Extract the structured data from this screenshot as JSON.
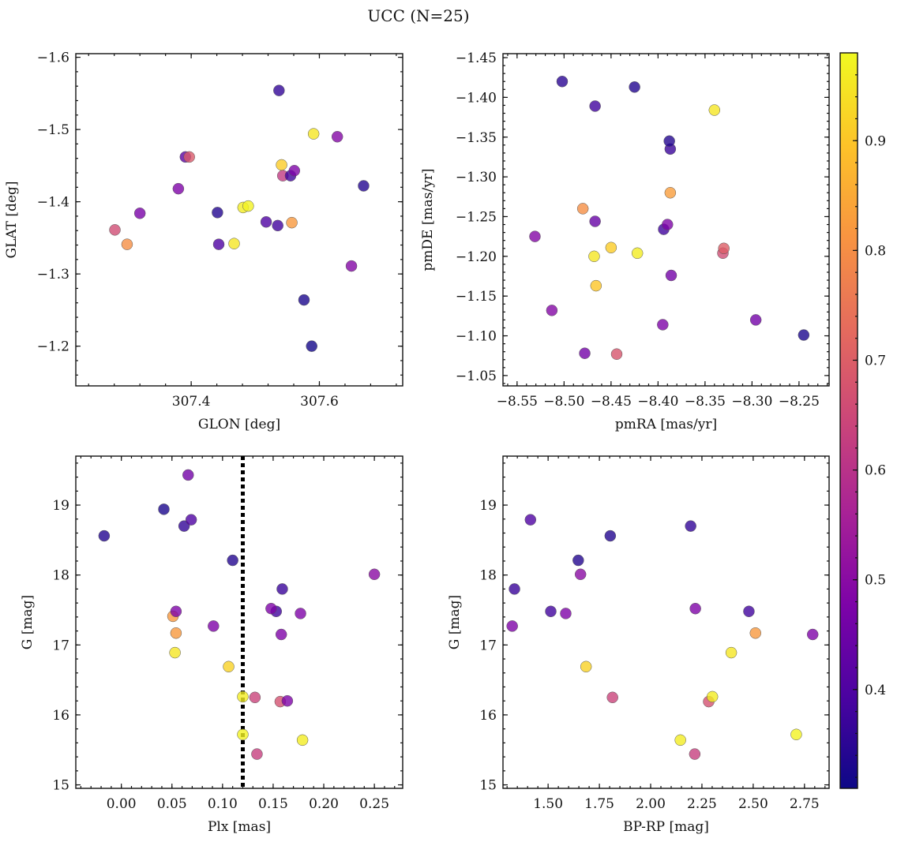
{
  "figure": {
    "title": "UCC (N=25)"
  },
  "colorbar": {
    "colormap": "plasma",
    "range": [
      0.31,
      0.98
    ],
    "ticks": [
      0.4,
      0.5,
      0.6,
      0.7,
      0.8,
      0.9
    ],
    "tick_labels": [
      "0.4",
      "0.5",
      "0.6",
      "0.7",
      "0.8",
      "0.9"
    ]
  },
  "chart_data": [
    {
      "type": "scatter",
      "xlabel": "GLON [deg]",
      "ylabel": "GLAT [deg]",
      "xlim": [
        307.22,
        307.73
      ],
      "ylim": [
        -1.605,
        -1.145
      ],
      "xticks": [
        307.4,
        307.6
      ],
      "xtick_labels": [
        "307.4",
        "307.6"
      ],
      "yticks": [
        -1.6,
        -1.5,
        -1.4,
        -1.3,
        -1.2
      ],
      "ytick_labels": [
        "−1.6",
        "−1.5",
        "−1.4",
        "−1.3",
        "−1.2"
      ],
      "points": [
        {
          "x": 307.588,
          "y": -1.2,
          "c": 0.32
        },
        {
          "x": 307.576,
          "y": -1.264,
          "c": 0.33
        },
        {
          "x": 307.65,
          "y": -1.311,
          "c": 0.49
        },
        {
          "x": 307.281,
          "y": -1.361,
          "c": 0.66
        },
        {
          "x": 307.3,
          "y": -1.341,
          "c": 0.8
        },
        {
          "x": 307.32,
          "y": -1.384,
          "c": 0.47
        },
        {
          "x": 307.443,
          "y": -1.341,
          "c": 0.4
        },
        {
          "x": 307.467,
          "y": -1.342,
          "c": 0.95
        },
        {
          "x": 307.441,
          "y": -1.385,
          "c": 0.34
        },
        {
          "x": 307.517,
          "y": -1.372,
          "c": 0.4
        },
        {
          "x": 307.535,
          "y": -1.367,
          "c": 0.38
        },
        {
          "x": 307.557,
          "y": -1.371,
          "c": 0.82
        },
        {
          "x": 307.481,
          "y": -1.392,
          "c": 0.96
        },
        {
          "x": 307.489,
          "y": -1.394,
          "c": 0.97
        },
        {
          "x": 307.38,
          "y": -1.418,
          "c": 0.48
        },
        {
          "x": 307.669,
          "y": -1.422,
          "c": 0.34
        },
        {
          "x": 307.543,
          "y": -1.436,
          "c": 0.62
        },
        {
          "x": 307.555,
          "y": -1.436,
          "c": 0.38
        },
        {
          "x": 307.561,
          "y": -1.443,
          "c": 0.48
        },
        {
          "x": 307.541,
          "y": -1.451,
          "c": 0.91
        },
        {
          "x": 307.391,
          "y": -1.462,
          "c": 0.42
        },
        {
          "x": 307.397,
          "y": -1.462,
          "c": 0.69
        },
        {
          "x": 307.591,
          "y": -1.494,
          "c": 0.95
        },
        {
          "x": 307.628,
          "y": -1.49,
          "c": 0.49
        },
        {
          "x": 307.537,
          "y": -1.554,
          "c": 0.36
        }
      ]
    },
    {
      "type": "scatter",
      "xlabel": "pmRA [mas/yr]",
      "ylabel": "pmDE [mas/yr]",
      "xlim": [
        -8.565,
        -8.218
      ],
      "ylim": [
        -1.455,
        -1.037
      ],
      "xticks": [
        -8.55,
        -8.5,
        -8.45,
        -8.4,
        -8.35,
        -8.3,
        -8.25
      ],
      "xtick_labels": [
        "−8.55",
        "−8.50",
        "−8.45",
        "−8.40",
        "−8.35",
        "−8.30",
        "−8.25"
      ],
      "yticks": [
        -1.45,
        -1.4,
        -1.35,
        -1.3,
        -1.25,
        -1.2,
        -1.15,
        -1.1,
        -1.05
      ],
      "ytick_labels": [
        "−1.45",
        "−1.40",
        "−1.35",
        "−1.30",
        "−1.25",
        "−1.20",
        "−1.15",
        "−1.10",
        "−1.05"
      ],
      "points": [
        {
          "x": -8.478,
          "y": -1.078,
          "c": 0.46
        },
        {
          "x": -8.444,
          "y": -1.077,
          "c": 0.68
        },
        {
          "x": -8.245,
          "y": -1.101,
          "c": 0.33
        },
        {
          "x": -8.395,
          "y": -1.114,
          "c": 0.48
        },
        {
          "x": -8.296,
          "y": -1.12,
          "c": 0.46
        },
        {
          "x": -8.513,
          "y": -1.132,
          "c": 0.49
        },
        {
          "x": -8.466,
          "y": -1.163,
          "c": 0.9
        },
        {
          "x": -8.386,
          "y": -1.176,
          "c": 0.46
        },
        {
          "x": -8.468,
          "y": -1.2,
          "c": 0.95
        },
        {
          "x": -8.422,
          "y": -1.204,
          "c": 0.96
        },
        {
          "x": -8.45,
          "y": -1.211,
          "c": 0.91
        },
        {
          "x": -8.331,
          "y": -1.204,
          "c": 0.66
        },
        {
          "x": -8.33,
          "y": -1.21,
          "c": 0.7
        },
        {
          "x": -8.531,
          "y": -1.225,
          "c": 0.49
        },
        {
          "x": -8.394,
          "y": -1.234,
          "c": 0.38
        },
        {
          "x": -8.39,
          "y": -1.24,
          "c": 0.48
        },
        {
          "x": -8.467,
          "y": -1.244,
          "c": 0.44
        },
        {
          "x": -8.48,
          "y": -1.26,
          "c": 0.8
        },
        {
          "x": -8.387,
          "y": -1.28,
          "c": 0.83
        },
        {
          "x": -8.387,
          "y": -1.335,
          "c": 0.37
        },
        {
          "x": -8.388,
          "y": -1.345,
          "c": 0.34
        },
        {
          "x": -8.34,
          "y": -1.384,
          "c": 0.95
        },
        {
          "x": -8.467,
          "y": -1.389,
          "c": 0.38
        },
        {
          "x": -8.425,
          "y": -1.413,
          "c": 0.34
        },
        {
          "x": -8.502,
          "y": -1.42,
          "c": 0.35
        }
      ]
    },
    {
      "type": "scatter",
      "xlabel": "Plx [mas]",
      "ylabel": "G [mag]",
      "xlim": [
        -0.045,
        0.278
      ],
      "ylim": [
        19.7,
        14.95
      ],
      "xticks": [
        0.0,
        0.05,
        0.1,
        0.15,
        0.2,
        0.25
      ],
      "xtick_labels": [
        "0.00",
        "0.05",
        "0.10",
        "0.15",
        "0.20",
        "0.25"
      ],
      "yticks": [
        15,
        16,
        17,
        18,
        19
      ],
      "ytick_labels": [
        "15",
        "16",
        "17",
        "18",
        "19"
      ],
      "vline": {
        "x": 0.12,
        "style": "dotted"
      },
      "points": [
        {
          "x": 0.134,
          "y": 15.44,
          "c": 0.63
        },
        {
          "x": 0.179,
          "y": 15.64,
          "c": 0.96
        },
        {
          "x": 0.12,
          "y": 15.72,
          "c": 0.97
        },
        {
          "x": 0.157,
          "y": 16.19,
          "c": 0.67
        },
        {
          "x": 0.164,
          "y": 16.2,
          "c": 0.48
        },
        {
          "x": 0.12,
          "y": 16.26,
          "c": 0.96
        },
        {
          "x": 0.132,
          "y": 16.25,
          "c": 0.64
        },
        {
          "x": 0.106,
          "y": 16.69,
          "c": 0.92
        },
        {
          "x": 0.053,
          "y": 16.89,
          "c": 0.95
        },
        {
          "x": 0.158,
          "y": 17.15,
          "c": 0.48
        },
        {
          "x": 0.054,
          "y": 17.17,
          "c": 0.82
        },
        {
          "x": 0.091,
          "y": 17.27,
          "c": 0.48
        },
        {
          "x": 0.051,
          "y": 17.41,
          "c": 0.82
        },
        {
          "x": 0.054,
          "y": 17.48,
          "c": 0.48
        },
        {
          "x": 0.177,
          "y": 17.45,
          "c": 0.48
        },
        {
          "x": 0.153,
          "y": 17.48,
          "c": 0.38
        },
        {
          "x": 0.148,
          "y": 17.52,
          "c": 0.48
        },
        {
          "x": 0.159,
          "y": 17.8,
          "c": 0.37
        },
        {
          "x": 0.25,
          "y": 18.01,
          "c": 0.5
        },
        {
          "x": 0.11,
          "y": 18.21,
          "c": 0.34
        },
        {
          "x": -0.017,
          "y": 18.56,
          "c": 0.34
        },
        {
          "x": 0.062,
          "y": 18.7,
          "c": 0.36
        },
        {
          "x": 0.069,
          "y": 18.79,
          "c": 0.4
        },
        {
          "x": 0.042,
          "y": 18.94,
          "c": 0.33
        },
        {
          "x": 0.066,
          "y": 19.43,
          "c": 0.46
        }
      ]
    },
    {
      "type": "scatter",
      "xlabel": "BP-RP [mag]",
      "ylabel": "G [mag]",
      "xlim": [
        1.28,
        2.87
      ],
      "ylim": [
        19.7,
        14.95
      ],
      "xticks": [
        1.5,
        1.75,
        2.0,
        2.25,
        2.5,
        2.75
      ],
      "xtick_labels": [
        "1.50",
        "1.75",
        "2.00",
        "2.25",
        "2.50",
        "2.75"
      ],
      "yticks": [
        15,
        16,
        17,
        18,
        19
      ],
      "ytick_labels": [
        "15",
        "16",
        "17",
        "18",
        "19"
      ],
      "points": [
        {
          "x": 2.215,
          "y": 15.44,
          "c": 0.63
        },
        {
          "x": 2.145,
          "y": 15.64,
          "c": 0.96
        },
        {
          "x": 2.71,
          "y": 15.72,
          "c": 0.97
        },
        {
          "x": 2.283,
          "y": 16.19,
          "c": 0.67
        },
        {
          "x": 2.301,
          "y": 16.26,
          "c": 0.96
        },
        {
          "x": 1.814,
          "y": 16.25,
          "c": 0.64
        },
        {
          "x": 1.685,
          "y": 16.69,
          "c": 0.92
        },
        {
          "x": 2.393,
          "y": 16.89,
          "c": 0.95
        },
        {
          "x": 2.79,
          "y": 17.15,
          "c": 0.48
        },
        {
          "x": 2.511,
          "y": 17.17,
          "c": 0.82
        },
        {
          "x": 1.325,
          "y": 17.27,
          "c": 0.48
        },
        {
          "x": 1.586,
          "y": 17.45,
          "c": 0.48
        },
        {
          "x": 1.513,
          "y": 17.48,
          "c": 0.38
        },
        {
          "x": 2.479,
          "y": 17.48,
          "c": 0.38
        },
        {
          "x": 2.218,
          "y": 17.52,
          "c": 0.48
        },
        {
          "x": 1.336,
          "y": 17.8,
          "c": 0.37
        },
        {
          "x": 1.658,
          "y": 18.01,
          "c": 0.5
        },
        {
          "x": 1.647,
          "y": 18.21,
          "c": 0.34
        },
        {
          "x": 1.803,
          "y": 18.56,
          "c": 0.34
        },
        {
          "x": 2.195,
          "y": 18.7,
          "c": 0.36
        },
        {
          "x": 1.414,
          "y": 18.79,
          "c": 0.4
        }
      ]
    }
  ]
}
